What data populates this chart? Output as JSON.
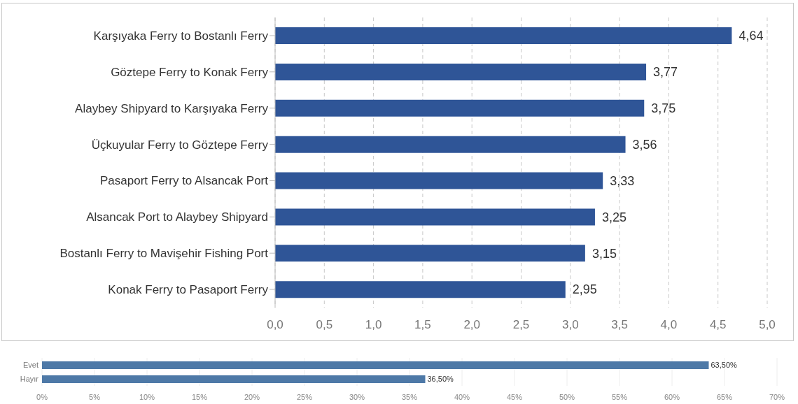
{
  "chart_data": [
    {
      "type": "bar",
      "orientation": "horizontal",
      "categories": [
        "Karşıyaka Ferry to Bostanlı Ferry",
        "Göztepe Ferry to Konak Ferry",
        "Alaybey Shipyard to Karşıyaka Ferry",
        "Üçkuyular Ferry to Göztepe Ferry",
        "Pasaport Ferry to Alsancak Port",
        "Alsancak Port to Alaybey Shipyard",
        "Bostanlı Ferry to Mavişehir Fishing Port",
        "Konak Ferry to Pasaport Ferry"
      ],
      "values": [
        4.64,
        3.77,
        3.75,
        3.56,
        3.33,
        3.25,
        3.15,
        2.95
      ],
      "value_labels": [
        "4,64",
        "3,77",
        "3,75",
        "3,56",
        "3,33",
        "3,25",
        "3,15",
        "2,95"
      ],
      "color": "#2f5597",
      "xlim": [
        0,
        5
      ],
      "xticks": [
        {
          "value": 0,
          "label": "0,0"
        },
        {
          "value": 0.5,
          "label": "0,5"
        },
        {
          "value": 1,
          "label": "1,0"
        },
        {
          "value": 1.5,
          "label": "1,5"
        },
        {
          "value": 2,
          "label": "2,0"
        },
        {
          "value": 2.5,
          "label": "2,5"
        },
        {
          "value": 3,
          "label": "3,0"
        },
        {
          "value": 3.5,
          "label": "3,5"
        },
        {
          "value": 4,
          "label": "4,0"
        },
        {
          "value": 4.5,
          "label": "4,5"
        },
        {
          "value": 5,
          "label": "5,0"
        }
      ],
      "grid": "x"
    },
    {
      "type": "bar",
      "orientation": "horizontal",
      "categories": [
        "Evet",
        "Hayır"
      ],
      "values": [
        63.5,
        36.5
      ],
      "value_labels": [
        "63,50%",
        "36,50%"
      ],
      "color": "#4e79a7",
      "xlim": [
        0,
        70
      ],
      "xticks": [
        {
          "value": 0,
          "label": "0%"
        },
        {
          "value": 5,
          "label": "5%"
        },
        {
          "value": 10,
          "label": "10%"
        },
        {
          "value": 15,
          "label": "15%"
        },
        {
          "value": 20,
          "label": "20%"
        },
        {
          "value": 25,
          "label": "25%"
        },
        {
          "value": 30,
          "label": "30%"
        },
        {
          "value": 35,
          "label": "35%"
        },
        {
          "value": 40,
          "label": "40%"
        },
        {
          "value": 45,
          "label": "45%"
        },
        {
          "value": 50,
          "label": "50%"
        },
        {
          "value": 55,
          "label": "55%"
        },
        {
          "value": 60,
          "label": "60%"
        },
        {
          "value": 65,
          "label": "65%"
        },
        {
          "value": 70,
          "label": "70%"
        }
      ],
      "grid": "x"
    }
  ]
}
